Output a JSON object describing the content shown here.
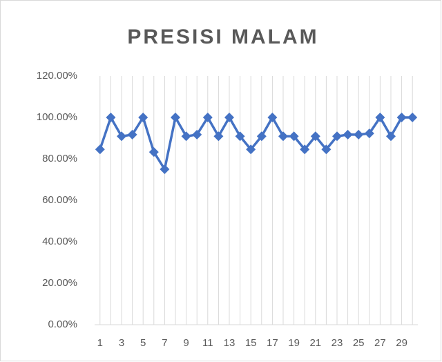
{
  "chart_data": {
    "type": "line",
    "title": "PRESISI MALAM",
    "categories": [
      1,
      null,
      3,
      null,
      5,
      null,
      7,
      null,
      9,
      null,
      11,
      null,
      13,
      null,
      15,
      null,
      17,
      null,
      19,
      null,
      21,
      null,
      23,
      null,
      25,
      null,
      27,
      null,
      29,
      null
    ],
    "values": [
      84.6,
      100,
      90.9,
      91.7,
      100,
      83.3,
      75,
      100,
      90.9,
      91.7,
      100,
      90.9,
      100,
      90.9,
      84.6,
      90.9,
      100,
      90.9,
      90.9,
      84.6,
      90.9,
      84.6,
      90.9,
      91.7,
      91.7,
      92.3,
      100,
      90.9,
      100,
      100
    ],
    "color": "#4472c4",
    "ylim": [
      0,
      120
    ],
    "yticks": [
      {
        "value": 0,
        "label": "0.00%"
      },
      {
        "value": 20,
        "label": "20.00%"
      },
      {
        "value": 40,
        "label": "40.00%"
      },
      {
        "value": 60,
        "label": "60.00%"
      },
      {
        "value": 80,
        "label": "80.00%"
      },
      {
        "value": 100,
        "label": "100.00%"
      },
      {
        "value": 120,
        "label": "120.00%"
      }
    ],
    "xgrid": true
  }
}
